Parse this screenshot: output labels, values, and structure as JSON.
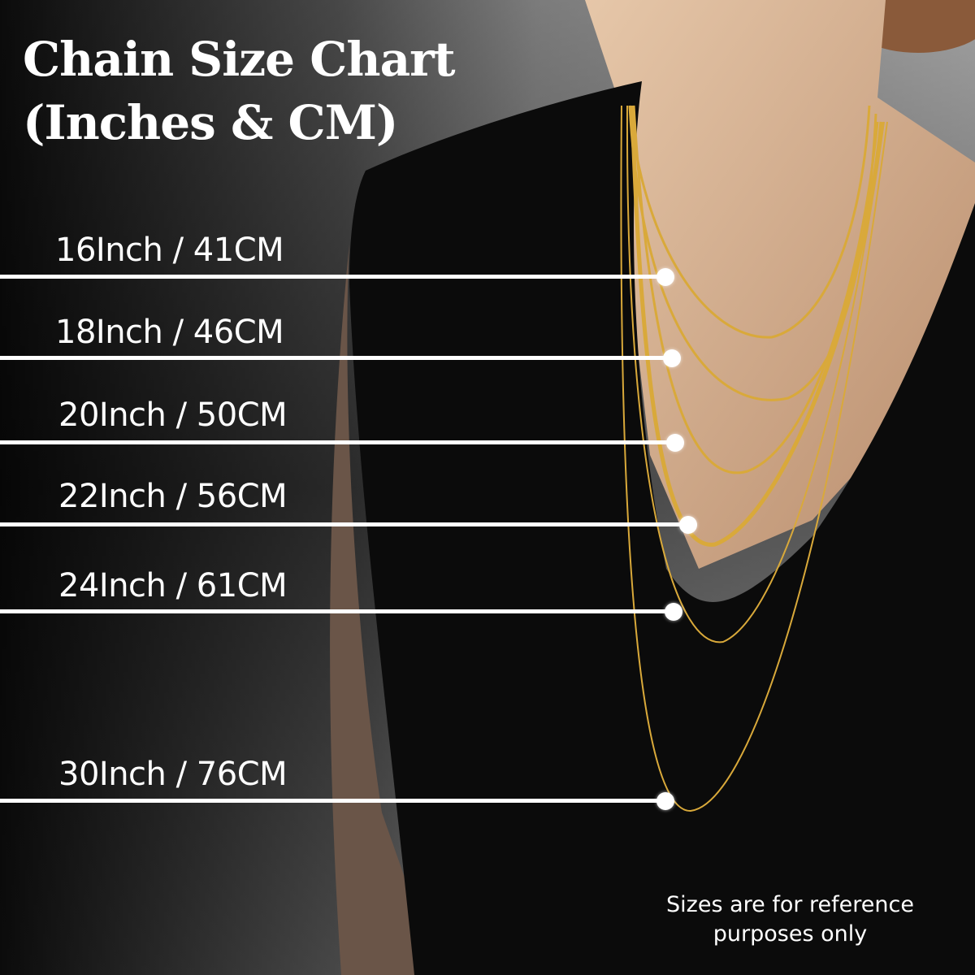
{
  "title": {
    "line1": "Chain Size Chart",
    "line2": "(Inches & CM)"
  },
  "sizes": [
    {
      "label": "16Inch / 41CM",
      "inches": 16,
      "cm": 41
    },
    {
      "label": "18Inch / 46CM",
      "inches": 18,
      "cm": 46
    },
    {
      "label": "20Inch / 50CM",
      "inches": 20,
      "cm": 50
    },
    {
      "label": "22Inch / 56CM",
      "inches": 22,
      "cm": 56
    },
    {
      "label": "24Inch / 61CM",
      "inches": 24,
      "cm": 61
    },
    {
      "label": "30Inch / 76CM",
      "inches": 30,
      "cm": 76
    }
  ],
  "note": {
    "line1": "Sizes are for reference",
    "line2": "purposes only"
  },
  "colors": {
    "marker": "#ffffff",
    "chain": "#d9a93a",
    "dress": "#0b0b0b",
    "skin": "#d7b596"
  }
}
